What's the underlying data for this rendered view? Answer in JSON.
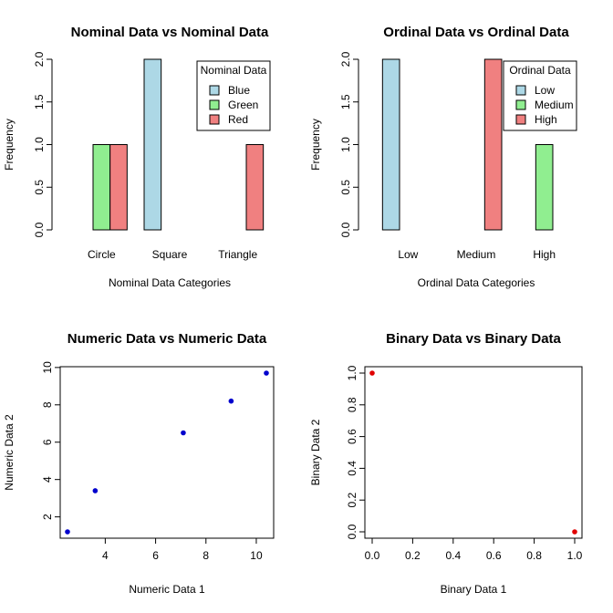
{
  "chart_data": [
    {
      "type": "bar",
      "title": "Nominal Data vs Nominal Data",
      "xlabel": "Nominal Data Categories",
      "ylabel": "Frequency",
      "categories": [
        "Circle",
        "Square",
        "Triangle"
      ],
      "yticks": [
        "0.0",
        "0.5",
        "1.0",
        "1.5",
        "2.0"
      ],
      "ylim": [
        0,
        2
      ],
      "grid": false,
      "legend": {
        "title": "Nominal Data",
        "placement": "top-right"
      },
      "series": [
        {
          "name": "Blue",
          "color": "#add8e6",
          "values": [
            0,
            2,
            0
          ]
        },
        {
          "name": "Green",
          "color": "#90ee90",
          "values": [
            1,
            0,
            0
          ]
        },
        {
          "name": "Red",
          "color": "#f08080",
          "values": [
            1,
            0,
            1
          ]
        }
      ]
    },
    {
      "type": "bar",
      "title": "Ordinal Data vs Ordinal Data",
      "xlabel": "Ordinal Data Categories",
      "ylabel": "Frequency",
      "categories": [
        "Low",
        "Medium",
        "High"
      ],
      "yticks": [
        "0.0",
        "0.5",
        "1.0",
        "1.5",
        "2.0"
      ],
      "ylim": [
        0,
        2
      ],
      "grid": false,
      "legend": {
        "title": "Ordinal Data",
        "placement": "top-right"
      },
      "series": [
        {
          "name": "Low",
          "color": "#add8e6",
          "values": [
            2,
            0,
            0
          ]
        },
        {
          "name": "Medium",
          "color": "#90ee90",
          "values": [
            0,
            0,
            1
          ]
        },
        {
          "name": "High",
          "color": "#f08080",
          "values": [
            0,
            2,
            0
          ]
        }
      ]
    },
    {
      "type": "scatter",
      "title": "Numeric Data vs Numeric Data",
      "xlabel": "Numeric Data 1",
      "ylabel": "Numeric Data 2",
      "xlim": [
        2.5,
        10.4
      ],
      "ylim": [
        1.2,
        9.7
      ],
      "xticks": [
        "4",
        "6",
        "8",
        "10"
      ],
      "yticks": [
        "2",
        "4",
        "6",
        "8",
        "10"
      ],
      "grid": false,
      "color": "#0000cd",
      "x": [
        2.5,
        3.6,
        7.1,
        9.0,
        10.4
      ],
      "y": [
        1.2,
        3.4,
        6.5,
        8.2,
        9.7
      ]
    },
    {
      "type": "scatter",
      "title": "Binary Data vs Binary Data",
      "xlabel": "Binary Data 1",
      "ylabel": "Binary Data 2",
      "xlim": [
        0,
        1
      ],
      "ylim": [
        0,
        1
      ],
      "xticks": [
        "0.0",
        "0.2",
        "0.4",
        "0.6",
        "0.8",
        "1.0"
      ],
      "yticks": [
        "0.0",
        "0.2",
        "0.4",
        "0.6",
        "0.8",
        "1.0"
      ],
      "grid": false,
      "color": "#e00000",
      "x": [
        0,
        1
      ],
      "y": [
        1,
        0
      ]
    }
  ]
}
